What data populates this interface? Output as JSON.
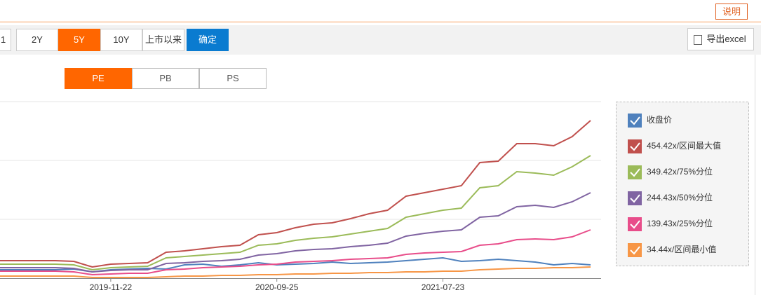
{
  "header": {
    "help_button": "说明"
  },
  "toolbar": {
    "input": "1",
    "ranges": [
      "2Y",
      "5Y",
      "10Y",
      "上市以来"
    ],
    "active_range_index": 1,
    "confirm": "确定",
    "export": "导出excel"
  },
  "tabs": {
    "items": [
      "PE",
      "PB",
      "PS"
    ],
    "active_index": 0
  },
  "chart_data": {
    "type": "line",
    "categories": [
      null,
      null,
      null,
      null,
      null,
      null,
      "2019-11-22",
      null,
      null,
      null,
      null,
      null,
      null,
      null,
      null,
      "2020-09-25",
      null,
      null,
      null,
      null,
      null,
      null,
      null,
      null,
      "2021-07-23",
      null,
      null,
      null,
      null,
      null,
      null,
      null,
      null
    ],
    "ylim": [
      0,
      252
    ],
    "series": [
      {
        "name": "收盘价",
        "color": "#4f81bd",
        "values": [
          12,
          12,
          12,
          12,
          13,
          9,
          12,
          13,
          14,
          13,
          19,
          20,
          17,
          19,
          22,
          19,
          20,
          21,
          23,
          21,
          22,
          23,
          25,
          27,
          29,
          24,
          25,
          27,
          25,
          23,
          19,
          21,
          19
        ]
      },
      {
        "name": "454.42x/区间最大值",
        "color": "#c0504d",
        "values": [
          25,
          25,
          25,
          25,
          24,
          16,
          20,
          21,
          22,
          37,
          39,
          42,
          45,
          47,
          62,
          65,
          72,
          77,
          79,
          85,
          92,
          97,
          117,
          122,
          127,
          132,
          165,
          167,
          192,
          192,
          189,
          202,
          225
        ]
      },
      {
        "name": "349.42x/75%分位",
        "color": "#9bbb59",
        "values": [
          20,
          20,
          20,
          20,
          19,
          12,
          15,
          16,
          17,
          29,
          31,
          33,
          35,
          37,
          47,
          49,
          54,
          57,
          59,
          63,
          67,
          71,
          87,
          92,
          97,
          100,
          129,
          132,
          152,
          150,
          147,
          159,
          175
        ]
      },
      {
        "name": "244.43x/50%分位",
        "color": "#8064a2",
        "values": [
          15,
          15,
          15,
          15,
          14,
          9,
          11,
          12,
          12,
          21,
          22,
          24,
          25,
          27,
          33,
          35,
          39,
          41,
          42,
          45,
          47,
          50,
          60,
          64,
          67,
          69,
          87,
          89,
          102,
          104,
          101,
          109,
          122
        ]
      },
      {
        "name": "139.43x/25%分位",
        "color": "#e84d8a",
        "values": [
          10,
          10,
          10,
          10,
          9,
          5,
          6,
          7,
          7,
          12,
          13,
          15,
          16,
          17,
          19,
          20,
          23,
          24,
          25,
          27,
          28,
          29,
          34,
          36,
          37,
          38,
          47,
          49,
          55,
          56,
          55,
          59,
          69
        ]
      },
      {
        "name": "34.44x/区间最小值",
        "color": "#f79646",
        "values": [
          3,
          3,
          3,
          3,
          3,
          1,
          1,
          1,
          1,
          2,
          3,
          3,
          4,
          4,
          5,
          5,
          6,
          6,
          7,
          7,
          8,
          8,
          9,
          9,
          10,
          10,
          12,
          13,
          14,
          14,
          15,
          15,
          16
        ]
      }
    ]
  }
}
